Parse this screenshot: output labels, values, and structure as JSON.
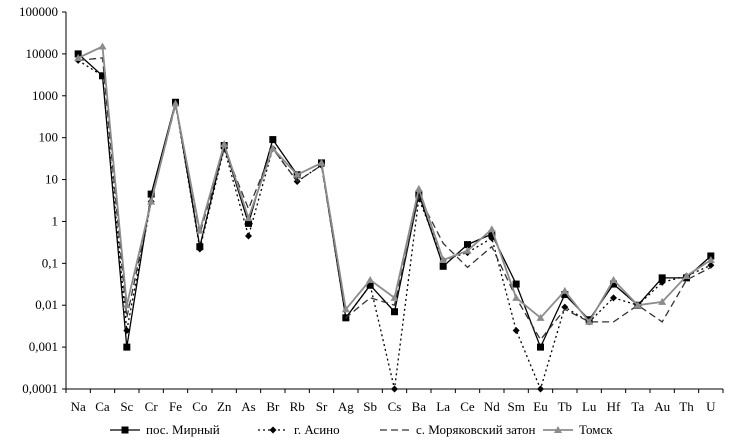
{
  "chart_data": {
    "type": "line",
    "title": "",
    "xlabel": "",
    "ylabel": "",
    "yscale": "log",
    "ylim": [
      0.0001,
      100000
    ],
    "yticks": [
      "0,0001",
      "0,001",
      "0,01",
      "0,1",
      "1",
      "10",
      "100",
      "1000",
      "10000",
      "100000"
    ],
    "grid": false,
    "legend_position": "bottom",
    "categories": [
      "Na",
      "Ca",
      "Sc",
      "Cr",
      "Fe",
      "Co",
      "Zn",
      "As",
      "Br",
      "Rb",
      "Sr",
      "Ag",
      "Sb",
      "Cs",
      "Ba",
      "La",
      "Ce",
      "Nd",
      "Sm",
      "Eu",
      "Tb",
      "Lu",
      "Hf",
      "Ta",
      "Au",
      "Th",
      "U"
    ],
    "series": [
      {
        "name": "пос. Мирный",
        "color": "#000000",
        "dash": "solid",
        "marker": "square",
        "values": [
          10000,
          3000,
          0.001,
          4.5,
          700,
          0.25,
          65,
          0.9,
          90,
          13,
          25,
          0.005,
          0.03,
          0.007,
          4.5,
          0.085,
          0.28,
          0.5,
          0.032,
          0.001,
          0.018,
          0.0045,
          0.032,
          0.01,
          0.045,
          0.045,
          0.15
        ]
      },
      {
        "name": "г. Асино",
        "color": "#000000",
        "dash": "dotted",
        "marker": "diamond",
        "values": [
          7000,
          3000,
          0.0025,
          3,
          650,
          0.22,
          55,
          0.45,
          55,
          9,
          22,
          0.005,
          0.03,
          0.0001,
          3.5,
          0.12,
          0.18,
          0.4,
          0.0025,
          0.0001,
          0.009,
          0.004,
          0.015,
          0.01,
          0.035,
          0.05,
          0.09
        ]
      },
      {
        "name": "с. Моряковский затон",
        "color": "#333333",
        "dash": "dashed",
        "marker": "none",
        "values": [
          7000,
          8000,
          0.005,
          3,
          600,
          0.5,
          55,
          2,
          55,
          9,
          22,
          0.005,
          0.015,
          0.01,
          4,
          0.3,
          0.08,
          0.25,
          0.015,
          0.0015,
          0.008,
          0.004,
          0.004,
          0.01,
          0.004,
          0.04,
          0.08
        ]
      },
      {
        "name": "Томск",
        "color": "#8c8c8c",
        "dash": "solid",
        "marker": "triangle",
        "values": [
          8000,
          15000,
          0.01,
          3,
          650,
          0.6,
          70,
          1.2,
          55,
          13,
          25,
          0.008,
          0.04,
          0.015,
          6,
          0.12,
          0.2,
          0.65,
          0.015,
          0.005,
          0.022,
          0.004,
          0.04,
          0.01,
          0.012,
          0.05,
          0.12
        ]
      }
    ]
  }
}
